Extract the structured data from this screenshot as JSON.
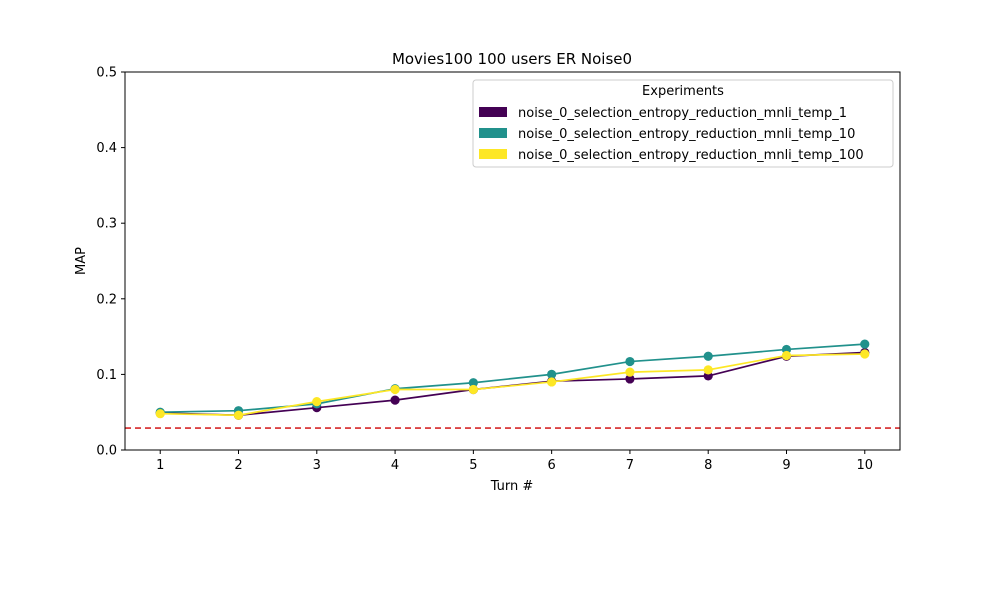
{
  "chart_data": {
    "type": "line",
    "title": "Movies100 100 users ER Noise0",
    "xlabel": "Turn #",
    "ylabel": "MAP",
    "x": [
      1,
      2,
      3,
      4,
      5,
      6,
      7,
      8,
      9,
      10
    ],
    "xlim": [
      0.55,
      10.45
    ],
    "ylim": [
      0,
      0.5
    ],
    "yticks": [
      "0.0",
      "0.1",
      "0.2",
      "0.3",
      "0.4",
      "0.5"
    ],
    "xticks": [
      "1",
      "2",
      "3",
      "4",
      "5",
      "6",
      "7",
      "8",
      "9",
      "10"
    ],
    "grid": false,
    "legend": {
      "title": "Experiments",
      "placement": "top-right"
    },
    "baseline": {
      "value": 0.029,
      "color": "#d62728",
      "style": "dashed"
    },
    "series": [
      {
        "name": "noise_0_selection_entropy_reduction_mnli_temp_1",
        "color": "#440154",
        "values": [
          0.049,
          0.046,
          0.056,
          0.066,
          0.08,
          0.091,
          0.094,
          0.098,
          0.124,
          0.129
        ]
      },
      {
        "name": "noise_0_selection_entropy_reduction_mnli_temp_10",
        "color": "#21918c",
        "values": [
          0.05,
          0.052,
          0.061,
          0.081,
          0.089,
          0.1,
          0.117,
          0.124,
          0.133,
          0.14
        ]
      },
      {
        "name": "noise_0_selection_entropy_reduction_mnli_temp_100",
        "color": "#fde725",
        "values": [
          0.048,
          0.046,
          0.064,
          0.08,
          0.08,
          0.09,
          0.103,
          0.106,
          0.125,
          0.127
        ]
      }
    ]
  }
}
